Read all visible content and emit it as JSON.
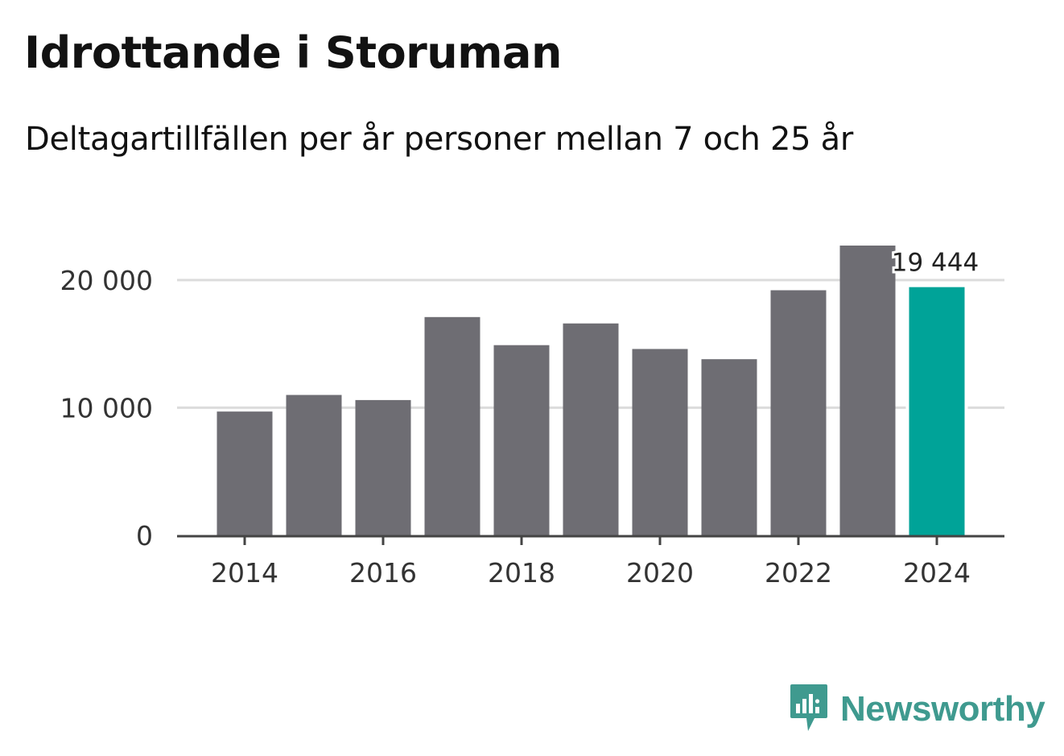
{
  "header": {
    "title": "Idrottande i Storuman",
    "subtitle": "Deltagartillfällen per år personer mellan 7 och 25 år"
  },
  "branding": {
    "name": "Newsworthy",
    "icon": "newsworthy-logo-icon",
    "color": "#3f9a8f"
  },
  "colors": {
    "bar": "#6e6d73",
    "highlight": "#00a398",
    "grid": "#dcdcdc",
    "axis": "#444444"
  },
  "chart_data": {
    "type": "bar",
    "title": "Idrottande i Storuman",
    "subtitle": "Deltagartillfällen per år personer mellan 7 och 25 år",
    "xlabel": "",
    "ylabel": "",
    "categories": [
      "2014",
      "2015",
      "2016",
      "2017",
      "2018",
      "2019",
      "2020",
      "2021",
      "2022",
      "2023",
      "2024"
    ],
    "values": [
      9700,
      11000,
      10600,
      17100,
      14900,
      16600,
      14600,
      13800,
      19200,
      22700,
      19444
    ],
    "highlight_index": 10,
    "data_label": {
      "index": 10,
      "text": "19 444"
    },
    "x_tick_labels": [
      "2014",
      "2016",
      "2018",
      "2020",
      "2022",
      "2024"
    ],
    "y_ticks": [
      0,
      10000,
      20000
    ],
    "y_tick_labels": [
      "0",
      "10 000",
      "20 000"
    ],
    "ylim": [
      0,
      22700
    ],
    "grid": true,
    "legend": "none"
  }
}
